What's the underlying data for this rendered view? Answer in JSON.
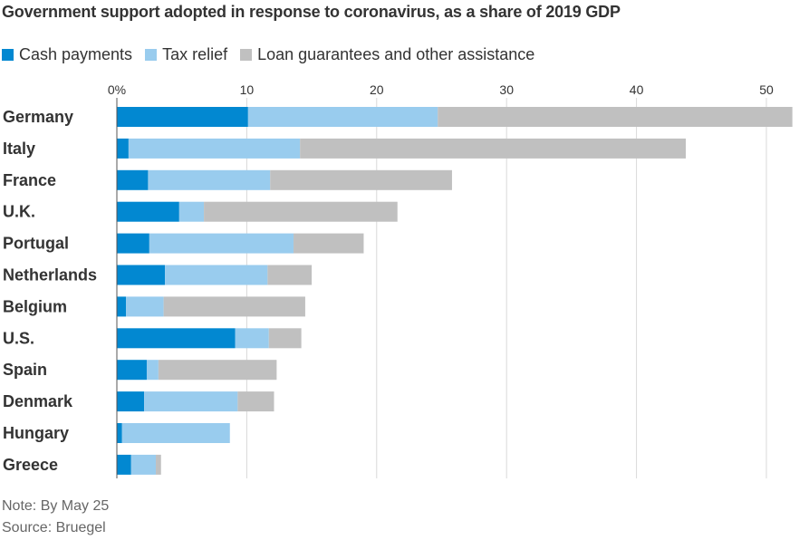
{
  "title": "Government support adopted in response to coronavirus, as a share of 2019 GDP",
  "legend": [
    {
      "label": "Cash payments",
      "color": "#0288d1"
    },
    {
      "label": "Tax relief",
      "color": "#99ccee"
    },
    {
      "label": "Loan guarantees and other assistance",
      "color": "#c0c0c0"
    }
  ],
  "note": "Note: By May 25",
  "source": "Source: Bruegel",
  "chart_data": {
    "type": "bar",
    "orientation": "horizontal",
    "stacked": true,
    "title": "Government support adopted in response to coronavirus, as a share of 2019 GDP",
    "xlim": [
      0,
      52
    ],
    "xticks": [
      0,
      10,
      20,
      30,
      40,
      50
    ],
    "xtick_labels": [
      "0%",
      "10",
      "20",
      "30",
      "40",
      "50"
    ],
    "grid": "vertical",
    "legend_position": "top-left",
    "categories": [
      "Germany",
      "Italy",
      "France",
      "U.K.",
      "Portugal",
      "Netherlands",
      "Belgium",
      "U.S.",
      "Spain",
      "Denmark",
      "Hungary",
      "Greece"
    ],
    "series": [
      {
        "name": "Cash payments",
        "color": "#0288d1",
        "values": [
          10.1,
          0.9,
          2.4,
          4.8,
          2.5,
          3.7,
          0.7,
          9.1,
          2.3,
          2.1,
          0.4,
          1.1
        ]
      },
      {
        "name": "Tax relief",
        "color": "#99ccee",
        "values": [
          14.6,
          13.2,
          9.4,
          1.9,
          11.1,
          7.9,
          2.9,
          2.6,
          0.9,
          7.2,
          8.3,
          1.9
        ]
      },
      {
        "name": "Loan guarantees and other assistance",
        "color": "#c0c0c0",
        "values": [
          27.3,
          29.7,
          14.0,
          14.9,
          5.4,
          3.4,
          10.9,
          2.5,
          9.1,
          2.8,
          0.0,
          0.4
        ]
      }
    ]
  }
}
